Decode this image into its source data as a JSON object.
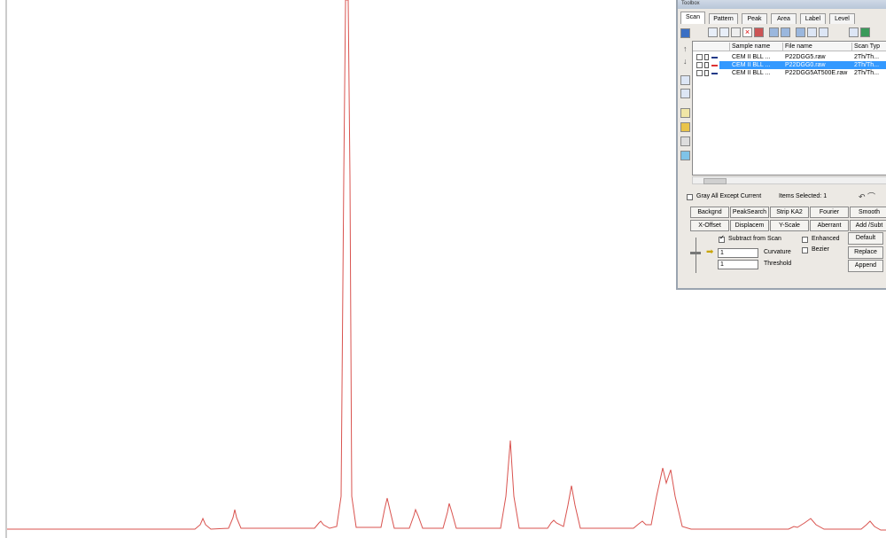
{
  "window": {
    "title": "Toolbox"
  },
  "tabs": [
    "Scan",
    "Pattern",
    "Peak",
    "Area",
    "Label",
    "Level"
  ],
  "table": {
    "headers": [
      "Sample name",
      "File name",
      "Scan Typ"
    ],
    "rows": [
      [
        "CEM II BLL ...",
        "P22DGG5.raw",
        "2Th/Th..."
      ],
      [
        "CEM II BLL ...",
        "P22DGG0.raw",
        "2Th/Th..."
      ],
      [
        "CEM II BLL ...",
        "P22DGG5AT500E.raw",
        "2Th/Th..."
      ]
    ]
  },
  "options": {
    "gray_all": "Gray All Except Current",
    "items_selected": "Items Selected: 1"
  },
  "function_buttons": [
    "Backgnd",
    "PeakSearch",
    "Strip KA2",
    "Fourier",
    "Smooth",
    "X-Offset",
    "Displacem",
    "Y-Scale",
    "Aberrant",
    "Add /Subt"
  ],
  "settings": {
    "subtract": "Subtract from Scan",
    "enhanced": "Enhanced",
    "bezier": "Bezier",
    "curvature_value": "1",
    "curvature_label": "Curvature",
    "threshold_value": "1",
    "threshold_label": "Threshold"
  },
  "action_buttons": [
    "Default",
    "Replace",
    "Append"
  ]
}
